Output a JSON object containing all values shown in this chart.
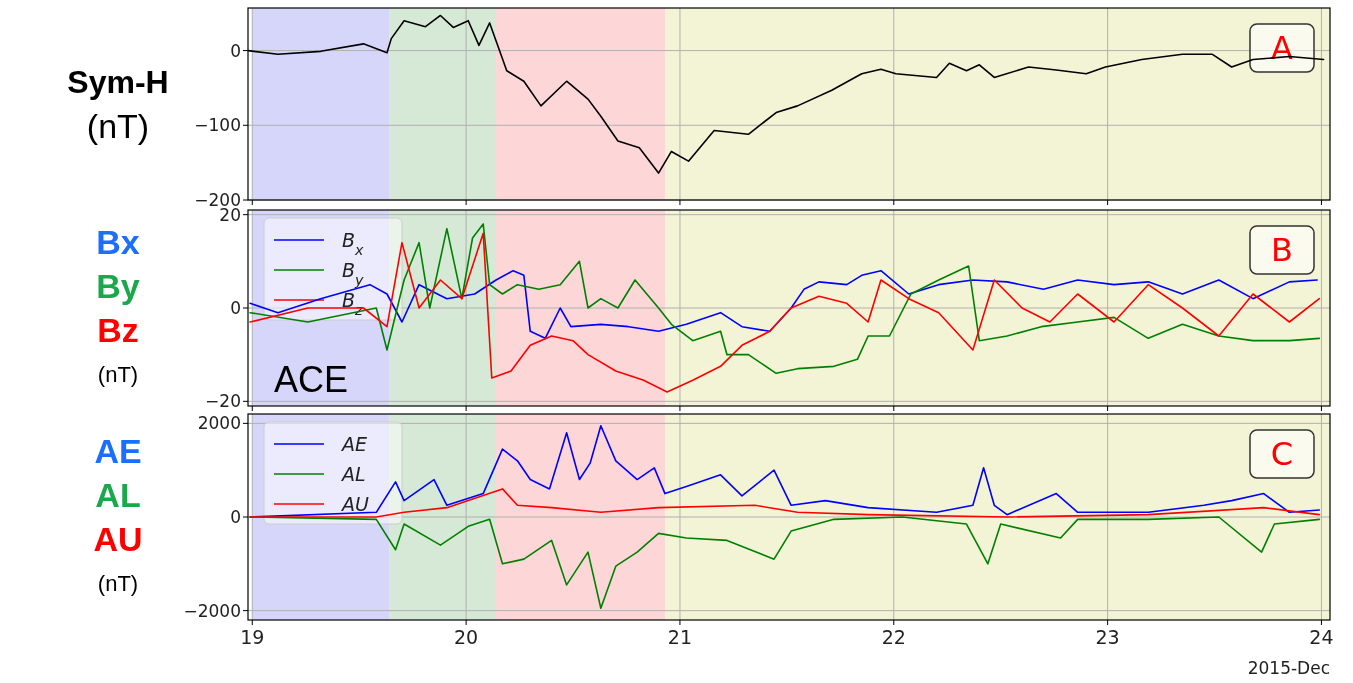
{
  "chart_data": [
    {
      "type": "line",
      "ylabel": "Sym-H\n(nT)",
      "annotations": [
        "A"
      ],
      "xlim": [
        18.98,
        24.04
      ],
      "xticks": [
        19,
        20,
        21,
        22,
        23,
        24
      ],
      "ylim": [
        -200,
        57
      ],
      "yticks": [
        0,
        -100,
        -200
      ],
      "tick_labels": "y",
      "grid": true,
      "bands": [
        {
          "axis": "x",
          "from": 19.0,
          "to": 19.64,
          "color": "#d6d6fb"
        },
        {
          "axis": "x",
          "from": 19.64,
          "to": 20.14,
          "color": "#d6e9d6"
        },
        {
          "axis": "x",
          "from": 20.14,
          "to": 20.93,
          "color": "#fdd7d8"
        },
        {
          "axis": "x",
          "from": 20.93,
          "to": 24.04,
          "color": "#f3f3d6"
        }
      ],
      "series": [
        {
          "color": "#000000",
          "x": [
            18.98,
            19.12,
            19.32,
            19.52,
            19.63,
            19.65,
            19.71,
            19.81,
            19.88,
            19.94,
            20.01,
            20.06,
            20.11,
            20.16,
            20.19,
            20.27,
            20.35,
            20.47,
            20.57,
            20.63,
            20.71,
            20.81,
            20.9,
            20.96,
            21.04,
            21.16,
            21.32,
            21.45,
            21.55,
            21.71,
            21.85,
            21.94,
            22.01,
            22.2,
            22.26,
            22.34,
            22.4,
            22.47,
            22.63,
            22.76,
            22.9,
            22.99,
            23.16,
            23.35,
            23.49,
            23.58,
            23.68,
            23.85,
            24.01
          ],
          "values": [
            0,
            -5,
            -1,
            9,
            -3,
            16,
            40,
            32,
            47,
            31,
            40,
            7,
            37,
            -3,
            -27,
            -41,
            -74,
            -41,
            -65,
            -88,
            -121,
            -130,
            -164,
            -135,
            -148,
            -107,
            -112,
            -83,
            -74,
            -53,
            -31,
            -25,
            -31,
            -36,
            -17,
            -27,
            -19,
            -36,
            -22,
            -26,
            -31,
            -22,
            -12,
            -5,
            -5,
            -22,
            -12,
            -8,
            -12
          ]
        }
      ]
    },
    {
      "type": "line",
      "ylabel": "Bx\nBy\nBz\n(nT)",
      "annotations": [
        "B",
        "ACE"
      ],
      "xlim": [
        18.98,
        24.04
      ],
      "xticks": [
        19,
        20,
        21,
        22,
        23,
        24
      ],
      "ylim": [
        -21,
        21
      ],
      "yticks": [
        20,
        0,
        -20
      ],
      "tick_labels": "y",
      "grid": true,
      "legend": "top left",
      "bands": [
        {
          "axis": "x",
          "from": 19.0,
          "to": 19.64,
          "color": "#d6d6fb"
        },
        {
          "axis": "x",
          "from": 19.64,
          "to": 20.14,
          "color": "#d6e9d6"
        },
        {
          "axis": "x",
          "from": 20.14,
          "to": 20.93,
          "color": "#fdd7d8"
        },
        {
          "axis": "x",
          "from": 20.93,
          "to": 24.04,
          "color": "#f3f3d6"
        }
      ],
      "series": [
        {
          "name": "B$_{x}$",
          "color": "#0000ff",
          "x": [
            18.99,
            19.12,
            19.32,
            19.55,
            19.63,
            19.7,
            19.78,
            19.91,
            20.04,
            20.14,
            20.22,
            20.27,
            20.3,
            20.37,
            20.44,
            20.49,
            20.63,
            20.76,
            20.9,
            21.03,
            21.19,
            21.29,
            21.42,
            21.52,
            21.58,
            21.65,
            21.78,
            21.85,
            21.94,
            22.07,
            22.21,
            22.37,
            22.53,
            22.7,
            22.86,
            23.03,
            23.19,
            23.35,
            23.52,
            23.68,
            23.85,
            23.98
          ],
          "values": [
            1,
            -1,
            2,
            5,
            3,
            -3,
            5,
            2,
            3,
            6,
            8,
            7,
            -5,
            -6.5,
            0,
            -4,
            -3.5,
            -4,
            -5,
            -3.5,
            -1,
            -4,
            -5,
            0,
            4,
            5.6,
            5,
            7,
            8,
            3,
            5,
            6,
            5.6,
            4,
            6,
            5,
            5.6,
            3,
            6,
            2,
            5.6,
            6
          ]
        },
        {
          "name": "B$_{y}$",
          "color": "#008000",
          "x": [
            18.99,
            19.26,
            19.58,
            19.63,
            19.71,
            19.78,
            19.83,
            19.91,
            19.98,
            20.03,
            20.08,
            20.11,
            20.17,
            20.24,
            20.34,
            20.44,
            20.53,
            20.57,
            20.63,
            20.71,
            20.79,
            20.9,
            20.96,
            21.06,
            21.19,
            21.22,
            21.32,
            21.45,
            21.55,
            21.72,
            21.83,
            21.88,
            21.98,
            22.08,
            22.21,
            22.35,
            22.4,
            22.53,
            22.69,
            22.86,
            23.03,
            23.19,
            23.35,
            23.52,
            23.68,
            23.85,
            23.99
          ],
          "values": [
            -1,
            -3,
            0,
            -9,
            6,
            14,
            0,
            17,
            2,
            15,
            18,
            5,
            3,
            5,
            4,
            5,
            10,
            0,
            2,
            0,
            6,
            0,
            -3.5,
            -7,
            -5,
            -10,
            -10,
            -14,
            -13,
            -12.5,
            -11,
            -6,
            -6,
            3,
            6,
            9,
            -7,
            -6,
            -4,
            -3,
            -2,
            -6.5,
            -3.5,
            -6,
            -7,
            -7,
            -6.5
          ]
        },
        {
          "name": "B$_{z}$",
          "color": "#ff0000",
          "x": [
            18.99,
            19.26,
            19.52,
            19.63,
            19.7,
            19.78,
            19.88,
            19.98,
            20.08,
            20.12,
            20.21,
            20.3,
            20.4,
            20.5,
            20.57,
            20.7,
            20.83,
            20.94,
            21.06,
            21.19,
            21.29,
            21.42,
            21.52,
            21.65,
            21.78,
            21.88,
            21.94,
            22.07,
            22.21,
            22.37,
            22.47,
            22.6,
            22.73,
            22.86,
            23.03,
            23.19,
            23.35,
            23.52,
            23.68,
            23.85,
            23.99
          ],
          "values": [
            -3,
            0,
            0,
            -4,
            14,
            0,
            6,
            2,
            16,
            -15,
            -13.5,
            -8,
            -6,
            -7,
            -10,
            -13.5,
            -15.5,
            -18,
            -15.5,
            -12.5,
            -8,
            -5,
            0,
            2.5,
            1,
            -3,
            6,
            2,
            -1,
            -9,
            6,
            0,
            -3,
            3,
            -3,
            5,
            0,
            -6,
            3,
            -3,
            2
          ]
        }
      ]
    },
    {
      "type": "line",
      "ylabel": "AE\nAL\nAU\n(nT)",
      "xlabel": "2015-Dec",
      "annotations": [
        "C"
      ],
      "xlim": [
        18.98,
        24.04
      ],
      "xticks": [
        19,
        20,
        21,
        22,
        23,
        24
      ],
      "ylim": [
        -2200,
        2200
      ],
      "yticks": [
        2000,
        0,
        -2000
      ],
      "grid": true,
      "legend": "top left",
      "bands": [
        {
          "axis": "x",
          "from": 19.0,
          "to": 19.64,
          "color": "#d6d6fb"
        },
        {
          "axis": "x",
          "from": 19.64,
          "to": 20.14,
          "color": "#d6e9d6"
        },
        {
          "axis": "x",
          "from": 20.14,
          "to": 20.93,
          "color": "#fdd7d8"
        },
        {
          "axis": "x",
          "from": 20.93,
          "to": 24.04,
          "color": "#f3f3d6"
        }
      ],
      "series": [
        {
          "name": "AE",
          "color": "#0000ff",
          "x": [
            18.99,
            19.58,
            19.67,
            19.71,
            19.85,
            19.91,
            20.08,
            20.17,
            20.24,
            20.3,
            20.39,
            20.47,
            20.53,
            20.58,
            20.63,
            20.7,
            20.8,
            20.88,
            20.93,
            21.03,
            21.19,
            21.29,
            21.44,
            21.52,
            21.68,
            21.88,
            22.2,
            22.37,
            22.42,
            22.47,
            22.53,
            22.76,
            22.86,
            23.19,
            23.45,
            23.58,
            23.73,
            23.85,
            23.99
          ],
          "values": [
            0,
            100,
            750,
            350,
            800,
            250,
            500,
            1450,
            1200,
            800,
            600,
            1800,
            800,
            1150,
            1950,
            1200,
            800,
            1050,
            500,
            650,
            900,
            450,
            1000,
            250,
            350,
            200,
            100,
            250,
            1050,
            250,
            50,
            500,
            100,
            100,
            250,
            350,
            500,
            100,
            150
          ]
        },
        {
          "name": "AL",
          "color": "#008000",
          "x": [
            18.99,
            19.58,
            19.67,
            19.71,
            19.88,
            20.01,
            20.11,
            20.17,
            20.27,
            20.4,
            20.47,
            20.57,
            20.63,
            20.7,
            20.8,
            20.9,
            21.03,
            21.22,
            21.44,
            21.52,
            21.72,
            22.04,
            22.34,
            22.44,
            22.5,
            22.78,
            22.86,
            23.19,
            23.52,
            23.72,
            23.78,
            23.99
          ],
          "values": [
            0,
            -50,
            -700,
            -150,
            -600,
            -200,
            -50,
            -1000,
            -900,
            -500,
            -1450,
            -750,
            -1950,
            -1050,
            -750,
            -350,
            -450,
            -500,
            -900,
            -300,
            -50,
            0,
            -150,
            -1000,
            -150,
            -450,
            -50,
            -50,
            0,
            -750,
            -150,
            -50
          ]
        },
        {
          "name": "AU",
          "color": "#ff0000",
          "x": [
            18.99,
            19.58,
            19.71,
            19.91,
            20.17,
            20.24,
            20.4,
            20.63,
            20.9,
            21.35,
            21.55,
            21.88,
            22.53,
            23.19,
            23.73,
            23.99
          ],
          "values": [
            0,
            0,
            100,
            200,
            600,
            250,
            200,
            100,
            200,
            250,
            100,
            50,
            0,
            50,
            200,
            50
          ]
        }
      ]
    }
  ]
}
